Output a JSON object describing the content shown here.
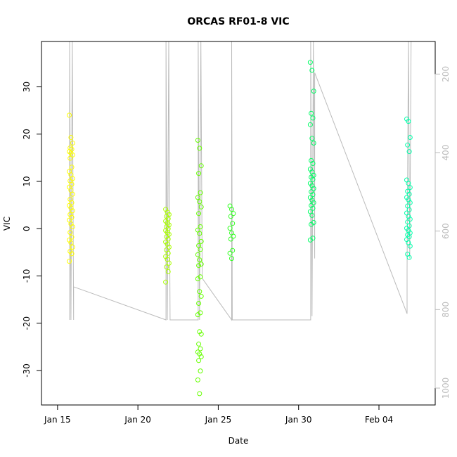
{
  "chart_data": {
    "type": "scatter",
    "title": "ORCAS RF01-8 VIC",
    "xlabel": "Date",
    "ylabel": "VIC",
    "xlim": [
      "2016-01-14T00:00",
      "2016-02-07T12:00"
    ],
    "ylim": [
      -37.3,
      39.6
    ],
    "x_ticks": [
      {
        "date": "2016-01-15",
        "label": "Jan 15"
      },
      {
        "date": "2016-01-20",
        "label": "Jan 20"
      },
      {
        "date": "2016-01-25",
        "label": "Jan 25"
      },
      {
        "date": "2016-01-30",
        "label": "Jan 30"
      },
      {
        "date": "2016-02-04",
        "label": "Feb 04"
      }
    ],
    "y_ticks": [
      -30,
      -20,
      -10,
      0,
      10,
      20,
      30
    ],
    "right_axis": {
      "ticks": [
        200,
        400,
        600,
        800,
        1000
      ],
      "ylim": [
        1043,
        117
      ],
      "color": "#bbbbbb"
    },
    "grid": false,
    "series": [
      {
        "color": "#FFFF00",
        "x": "2016-01-15T20:00",
        "values": [
          24,
          19.3,
          18.1,
          17.1,
          16.8,
          16.3,
          16.0,
          15.6,
          14.9,
          13.0,
          12.1,
          11.4,
          10.6,
          10.1,
          9.4,
          8.8,
          8.1,
          7.3,
          6.2,
          5.5,
          4.9,
          4.4,
          3.8,
          3.0,
          2.4,
          1.8,
          1.0,
          0.4,
          -0.8,
          -1.8,
          -2.4,
          -3.0,
          -3.9,
          -4.8,
          -5.3,
          -6.9
        ]
      },
      {
        "color": "#AAFF00",
        "x": "2016-01-21T20:00",
        "values": [
          4.1,
          3.5,
          3.0,
          2.6,
          2.1,
          1.6,
          1.2,
          0.8,
          0.4,
          0.0,
          -0.4,
          -0.8,
          -1.2,
          -1.7,
          -2.2,
          -2.8,
          -3.3,
          -3.9,
          -4.5,
          -5.2,
          -5.9,
          -6.5,
          -7.3,
          -8.1,
          -9.1,
          -11.3
        ]
      },
      {
        "color": "#66FF00",
        "x": "2016-01-23T20:00",
        "values": [
          18.7,
          17.0,
          13.3,
          11.7,
          7.6,
          6.6,
          5.7,
          4.6,
          3.2,
          0.4,
          -0.3,
          -1.0,
          -2.7,
          -3.6,
          -4.4,
          -5.5,
          -6.6,
          -7.5,
          -7.8,
          -10.2,
          -10.6,
          -13.3,
          -14.3,
          -15.8,
          -17.8,
          -18.2,
          -21.8,
          -22.3,
          -24.4,
          -25.4,
          -26.1,
          -26.5,
          -27.1,
          -27.9,
          -30.1,
          -32.0,
          -34.9
        ]
      },
      {
        "color": "#33FF22",
        "x": "2016-01-25T20:00",
        "values": [
          4.8,
          4.1,
          3.2,
          2.6,
          1.1,
          0.1,
          -0.9,
          -1.6,
          -2.2,
          -4.6,
          -5.2,
          -6.3
        ]
      },
      {
        "color": "#00FF66",
        "x": "2016-01-30T20:00",
        "values": [
          35.2,
          33.5,
          29.1,
          24.4,
          23.4,
          22.0,
          19.1,
          18.1,
          14.4,
          13.8,
          12.6,
          12.0,
          11.3,
          10.9,
          10.4,
          9.6,
          9.1,
          8.5,
          7.8,
          7.2,
          6.6,
          6.0,
          5.5,
          4.9,
          4.3,
          3.6,
          2.8,
          1.3,
          0.9,
          -2.0,
          -2.4
        ]
      },
      {
        "color": "#00FFAA",
        "x": "2016-02-05T20:00",
        "values": [
          23.2,
          22.7,
          19.3,
          17.7,
          16.3,
          10.3,
          9.6,
          8.7,
          7.9,
          7.3,
          6.6,
          6.1,
          5.5,
          4.8,
          4.0,
          3.3,
          2.6,
          2.0,
          1.4,
          0.6,
          0.1,
          -0.4,
          -0.9,
          -1.3,
          -1.7,
          -2.3,
          -3.0,
          -3.7,
          -5.4,
          -6.1
        ]
      }
    ],
    "secondary_line": {
      "color": "#bbbbbb",
      "points": [
        [
          "2016-01-15T18:00",
          -19.3
        ],
        [
          "2016-01-15T18:00",
          39.6
        ],
        [
          "2016-01-15T20:00",
          -19.3
        ],
        [
          "2016-01-15T22:00",
          39.6
        ],
        [
          "2016-01-16T00:00",
          -19.3
        ],
        [
          "2016-01-16T00:00",
          -12.3
        ],
        [
          "2016-01-21T18:00",
          -19.3
        ],
        [
          "2016-01-21T18:00",
          39.6
        ],
        [
          "2016-01-21T20:00",
          -19.3
        ],
        [
          "2016-01-21T22:00",
          39.6
        ],
        [
          "2016-01-22T00:00",
          -19.3
        ],
        [
          "2016-01-23T18:00",
          -19.3
        ],
        [
          "2016-01-23T18:00",
          39.6
        ],
        [
          "2016-01-23T20:00",
          -19.3
        ],
        [
          "2016-01-23T22:00",
          39.6
        ],
        [
          "2016-01-24T00:00",
          -10.5
        ],
        [
          "2016-01-25T20:00",
          -19.3
        ],
        [
          "2016-01-25T20:00",
          39.6
        ],
        [
          "2016-01-25T21:00",
          -19.3
        ],
        [
          "2016-01-30T18:00",
          -19.3
        ],
        [
          "2016-01-30T18:00",
          39.6
        ],
        [
          "2016-01-30T20:00",
          -18.5
        ],
        [
          "2016-01-30T22:00",
          39.6
        ],
        [
          "2016-01-31T00:00",
          -6.3
        ],
        [
          "2016-01-31T00:00",
          33.0
        ],
        [
          "2016-02-05T18:00",
          -18.0
        ],
        [
          "2016-02-05T18:00",
          -9.0
        ],
        [
          "2016-02-05T20:00",
          39.6
        ],
        [
          "2016-02-05T22:00",
          -6.3
        ],
        [
          "2016-02-06T00:00",
          39.6
        ]
      ]
    }
  }
}
